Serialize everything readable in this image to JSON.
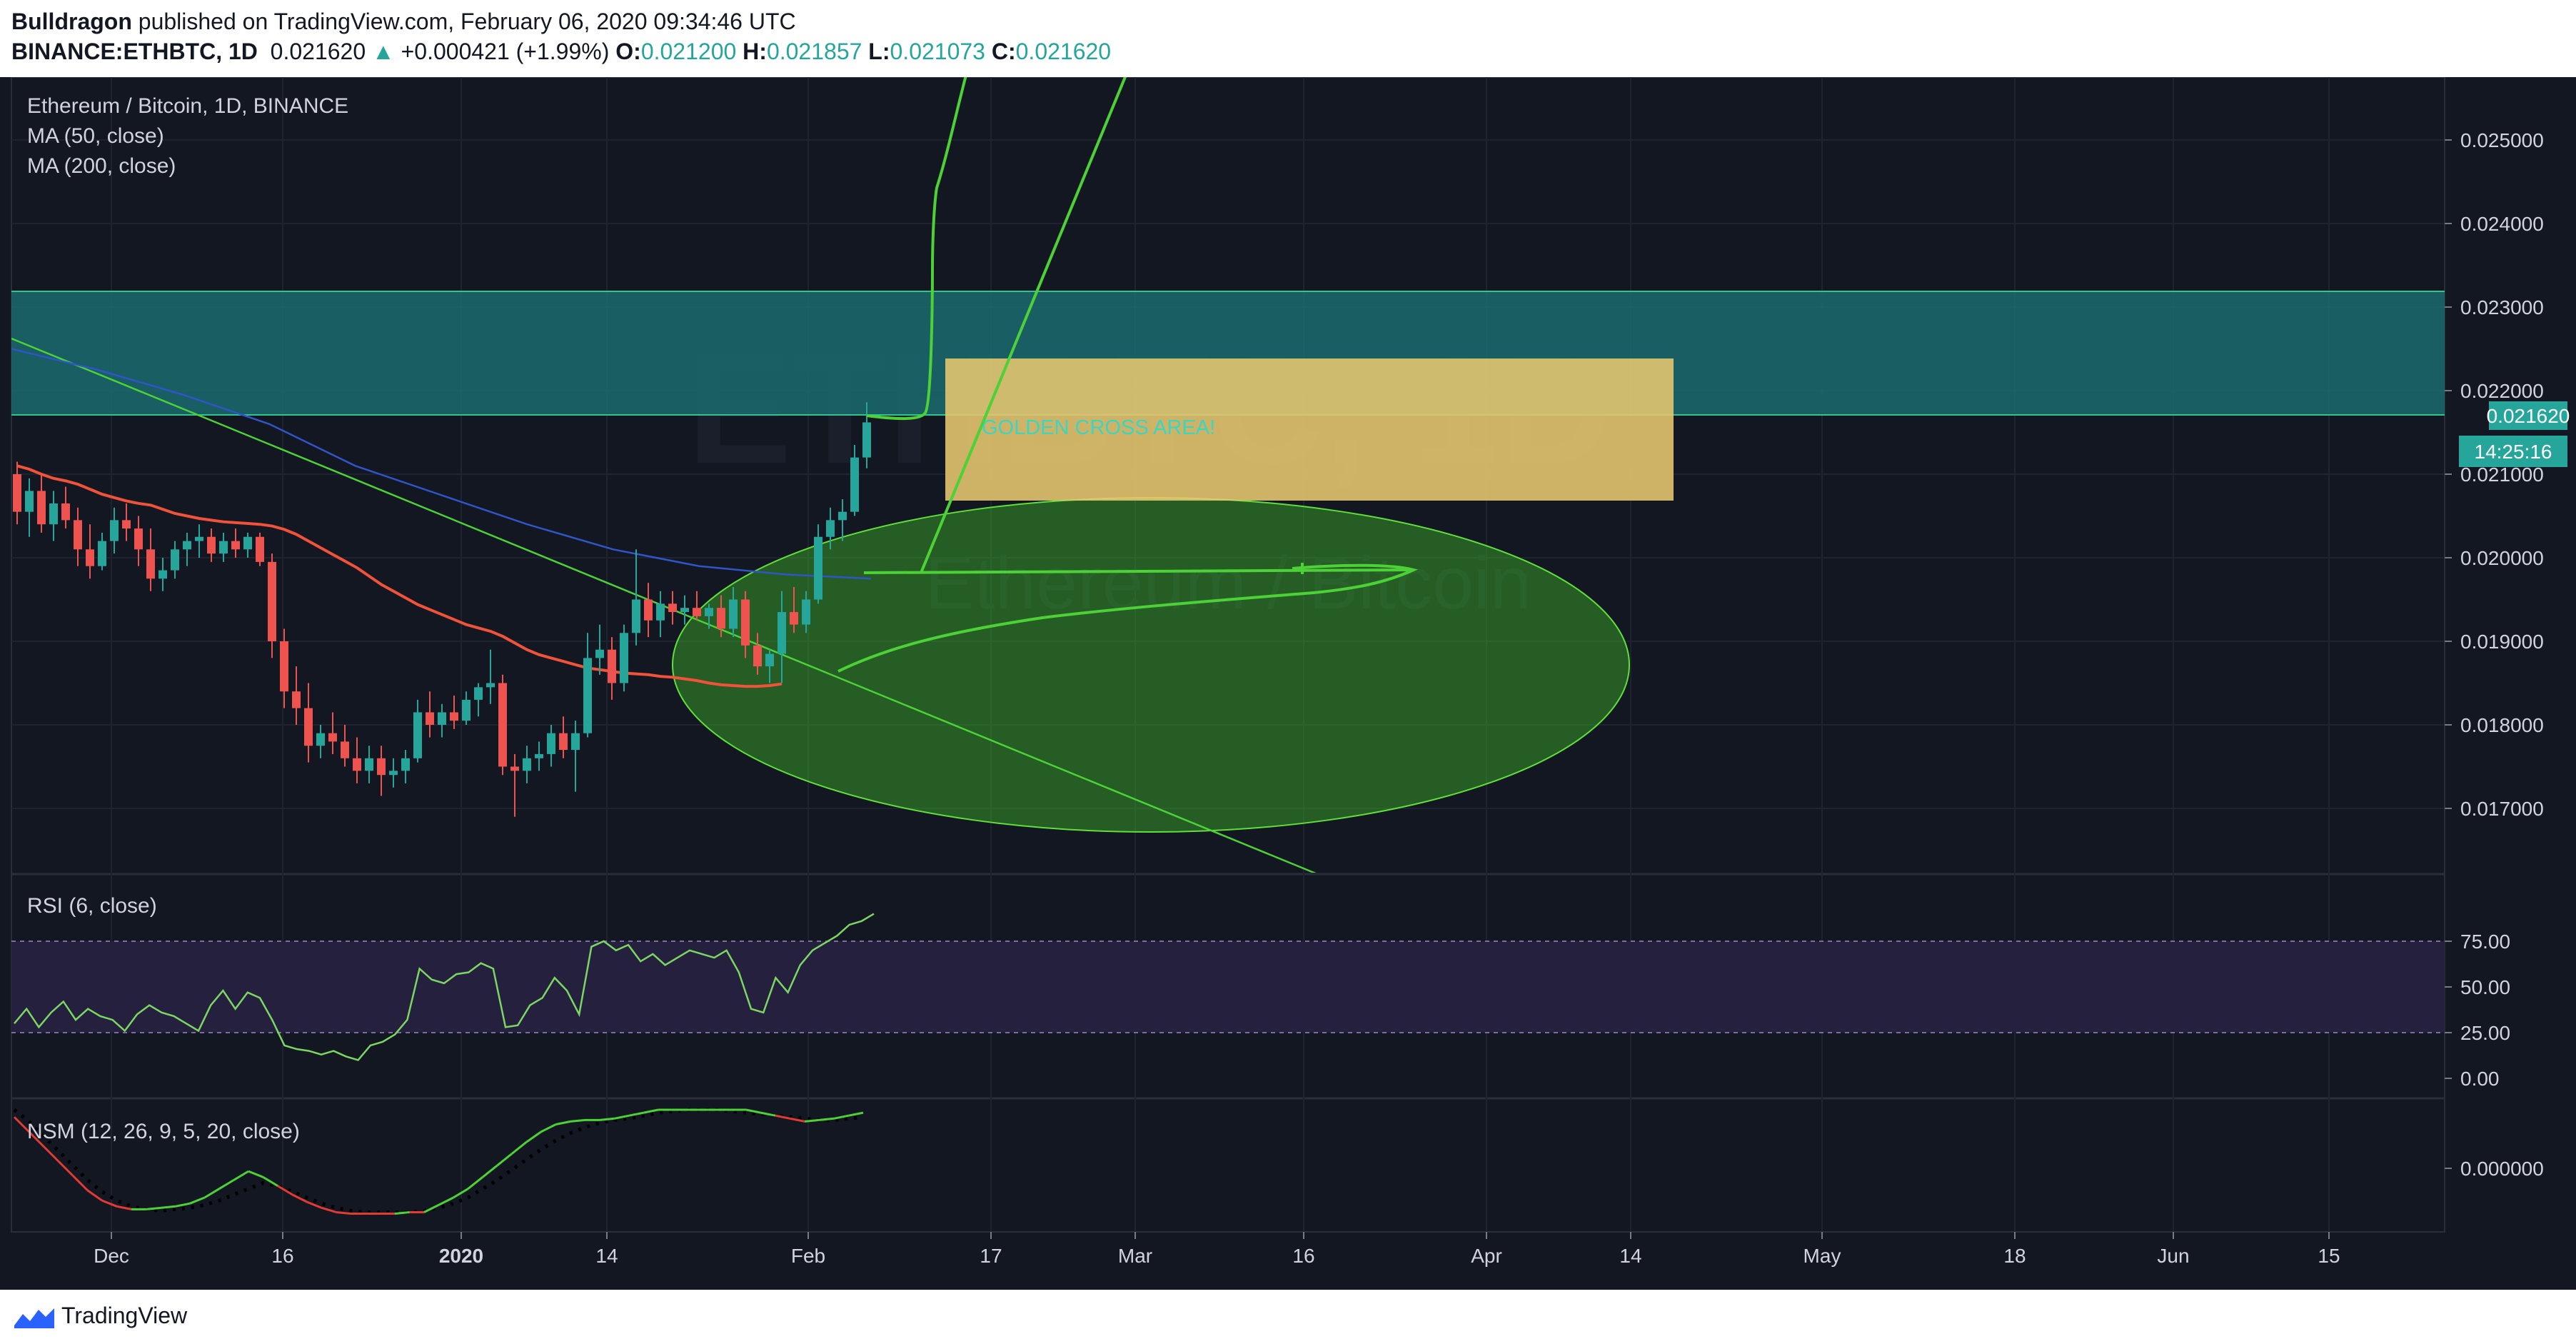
{
  "header": {
    "author": "Bulldragon",
    "published": "published on TradingView.com, February 06, 2020 09:34:46 UTC",
    "symbol": "BINANCE:ETHBTC, 1D",
    "price": "0.021620",
    "change_arrow": "▲",
    "change": "+0.000421 (+1.99%)",
    "o_label": "O:",
    "o": "0.021200",
    "h_label": "H:",
    "h": "0.021857",
    "l_label": "L:",
    "l": "0.021073",
    "c_label": "C:",
    "c": "0.021620"
  },
  "legend": {
    "title": "Ethereum / Bitcoin, 1D, BINANCE",
    "ma50": "MA (50, close)",
    "ma200": "MA (200, close)",
    "rsi": "RSI (6, close)",
    "nsm": "NSM (12, 26, 9, 5, 20, close)"
  },
  "watermark": {
    "big": "ETHBTC, 1D",
    "small": "Ethereum / Bitcoin"
  },
  "annotation": {
    "golden_cross": "GOLDEN CROSS AREA!"
  },
  "price_axis": {
    "ticks": [
      "0.025000",
      "0.024000",
      "0.023000",
      "0.022000",
      "0.021000",
      "0.020000",
      "0.019000",
      "0.018000",
      "0.017000"
    ],
    "current_price": "0.021620",
    "countdown": "14:25:16"
  },
  "rsi_axis": {
    "ticks": [
      "75.00",
      "50.00",
      "25.00",
      "0.00"
    ]
  },
  "nsm_axis": {
    "ticks": [
      "0.000000"
    ]
  },
  "time_axis": {
    "ticks": [
      "Dec",
      "16",
      "2020",
      "14",
      "Feb",
      "17",
      "Mar",
      "16",
      "Apr",
      "14",
      "May",
      "18",
      "Jun",
      "15"
    ]
  },
  "footer": {
    "brand": "TradingView"
  },
  "colors": {
    "background": "#131722",
    "up": "#26a69a",
    "down": "#ef5350",
    "ma50": "#f0523a",
    "ma200": "#2962ff",
    "teal_zone": "#1a6e72",
    "golden_box": "#e8c870",
    "green_drawing": "#4cd137",
    "rsi_line": "#7cd662",
    "rsi_band": "#26203f"
  },
  "chart_data": {
    "type": "candlestick",
    "symbol": "BINANCE:ETHBTC",
    "interval": "1D",
    "ylim": [
      0.0162,
      0.0263
    ],
    "candles": [
      {
        "o": 0.021,
        "h": 0.02115,
        "l": 0.0204,
        "c": 0.02055
      },
      {
        "o": 0.02055,
        "h": 0.02095,
        "l": 0.02025,
        "c": 0.0208
      },
      {
        "o": 0.0208,
        "h": 0.021,
        "l": 0.0203,
        "c": 0.0204
      },
      {
        "o": 0.0204,
        "h": 0.0208,
        "l": 0.0202,
        "c": 0.02065
      },
      {
        "o": 0.02065,
        "h": 0.02085,
        "l": 0.02035,
        "c": 0.02045
      },
      {
        "o": 0.02045,
        "h": 0.0206,
        "l": 0.0199,
        "c": 0.0201
      },
      {
        "o": 0.0201,
        "h": 0.0204,
        "l": 0.01975,
        "c": 0.0199
      },
      {
        "o": 0.0199,
        "h": 0.0203,
        "l": 0.01985,
        "c": 0.0202
      },
      {
        "o": 0.0202,
        "h": 0.0206,
        "l": 0.02005,
        "c": 0.02045
      },
      {
        "o": 0.02045,
        "h": 0.02065,
        "l": 0.0202,
        "c": 0.02035
      },
      {
        "o": 0.02035,
        "h": 0.0205,
        "l": 0.0199,
        "c": 0.0201
      },
      {
        "o": 0.0201,
        "h": 0.02035,
        "l": 0.0196,
        "c": 0.01975
      },
      {
        "o": 0.01975,
        "h": 0.02,
        "l": 0.0196,
        "c": 0.01985
      },
      {
        "o": 0.01985,
        "h": 0.0202,
        "l": 0.01975,
        "c": 0.0201
      },
      {
        "o": 0.0201,
        "h": 0.0203,
        "l": 0.0199,
        "c": 0.0202
      },
      {
        "o": 0.0202,
        "h": 0.0204,
        "l": 0.02,
        "c": 0.02025
      },
      {
        "o": 0.02025,
        "h": 0.02035,
        "l": 0.01995,
        "c": 0.02005
      },
      {
        "o": 0.02005,
        "h": 0.0203,
        "l": 0.01995,
        "c": 0.0202
      },
      {
        "o": 0.0202,
        "h": 0.02035,
        "l": 0.02,
        "c": 0.0201
      },
      {
        "o": 0.0201,
        "h": 0.0203,
        "l": 0.02,
        "c": 0.02025
      },
      {
        "o": 0.02025,
        "h": 0.0203,
        "l": 0.0199,
        "c": 0.01995
      },
      {
        "o": 0.01995,
        "h": 0.02005,
        "l": 0.0188,
        "c": 0.019
      },
      {
        "o": 0.019,
        "h": 0.01915,
        "l": 0.0182,
        "c": 0.0184
      },
      {
        "o": 0.0184,
        "h": 0.0187,
        "l": 0.018,
        "c": 0.0182
      },
      {
        "o": 0.0182,
        "h": 0.0185,
        "l": 0.01755,
        "c": 0.01775
      },
      {
        "o": 0.01775,
        "h": 0.018,
        "l": 0.0176,
        "c": 0.0179
      },
      {
        "o": 0.0179,
        "h": 0.01815,
        "l": 0.01765,
        "c": 0.0178
      },
      {
        "o": 0.0178,
        "h": 0.018,
        "l": 0.0175,
        "c": 0.0176
      },
      {
        "o": 0.0176,
        "h": 0.01785,
        "l": 0.0173,
        "c": 0.01745
      },
      {
        "o": 0.01745,
        "h": 0.01775,
        "l": 0.0173,
        "c": 0.0176
      },
      {
        "o": 0.0176,
        "h": 0.01775,
        "l": 0.01715,
        "c": 0.0174
      },
      {
        "o": 0.0174,
        "h": 0.0176,
        "l": 0.01725,
        "c": 0.01745
      },
      {
        "o": 0.01745,
        "h": 0.0177,
        "l": 0.0173,
        "c": 0.0176
      },
      {
        "o": 0.0176,
        "h": 0.0183,
        "l": 0.01755,
        "c": 0.01815
      },
      {
        "o": 0.01815,
        "h": 0.0184,
        "l": 0.01785,
        "c": 0.018
      },
      {
        "o": 0.018,
        "h": 0.01825,
        "l": 0.01785,
        "c": 0.01815
      },
      {
        "o": 0.01815,
        "h": 0.01835,
        "l": 0.01795,
        "c": 0.01805
      },
      {
        "o": 0.01805,
        "h": 0.0184,
        "l": 0.018,
        "c": 0.0183
      },
      {
        "o": 0.0183,
        "h": 0.0185,
        "l": 0.0181,
        "c": 0.01845
      },
      {
        "o": 0.01845,
        "h": 0.0189,
        "l": 0.01825,
        "c": 0.0185
      },
      {
        "o": 0.0185,
        "h": 0.0186,
        "l": 0.0174,
        "c": 0.0175
      },
      {
        "o": 0.0175,
        "h": 0.01765,
        "l": 0.0169,
        "c": 0.01745
      },
      {
        "o": 0.01745,
        "h": 0.01775,
        "l": 0.0173,
        "c": 0.0176
      },
      {
        "o": 0.0176,
        "h": 0.0178,
        "l": 0.01745,
        "c": 0.01765
      },
      {
        "o": 0.01765,
        "h": 0.018,
        "l": 0.0175,
        "c": 0.0179
      },
      {
        "o": 0.0179,
        "h": 0.0181,
        "l": 0.0176,
        "c": 0.0177
      },
      {
        "o": 0.0177,
        "h": 0.01805,
        "l": 0.0172,
        "c": 0.0179
      },
      {
        "o": 0.0179,
        "h": 0.0191,
        "l": 0.01785,
        "c": 0.0188
      },
      {
        "o": 0.0188,
        "h": 0.0192,
        "l": 0.0186,
        "c": 0.0189
      },
      {
        "o": 0.0189,
        "h": 0.01905,
        "l": 0.0183,
        "c": 0.0185
      },
      {
        "o": 0.0185,
        "h": 0.0192,
        "l": 0.0184,
        "c": 0.0191
      },
      {
        "o": 0.0191,
        "h": 0.0201,
        "l": 0.01895,
        "c": 0.0195
      },
      {
        "o": 0.0195,
        "h": 0.0197,
        "l": 0.01905,
        "c": 0.01925
      },
      {
        "o": 0.01925,
        "h": 0.0196,
        "l": 0.01905,
        "c": 0.01945
      },
      {
        "o": 0.01945,
        "h": 0.0196,
        "l": 0.0192,
        "c": 0.01935
      },
      {
        "o": 0.01935,
        "h": 0.01955,
        "l": 0.0192,
        "c": 0.0194
      },
      {
        "o": 0.0194,
        "h": 0.0196,
        "l": 0.01925,
        "c": 0.0193
      },
      {
        "o": 0.0193,
        "h": 0.01945,
        "l": 0.01915,
        "c": 0.0194
      },
      {
        "o": 0.0194,
        "h": 0.01955,
        "l": 0.01905,
        "c": 0.01915
      },
      {
        "o": 0.01915,
        "h": 0.01965,
        "l": 0.01905,
        "c": 0.0195
      },
      {
        "o": 0.0195,
        "h": 0.0196,
        "l": 0.0188,
        "c": 0.01895
      },
      {
        "o": 0.01895,
        "h": 0.0191,
        "l": 0.0186,
        "c": 0.0187
      },
      {
        "o": 0.0187,
        "h": 0.0189,
        "l": 0.0185,
        "c": 0.01885
      },
      {
        "o": 0.01885,
        "h": 0.0196,
        "l": 0.0185,
        "c": 0.01935
      },
      {
        "o": 0.01935,
        "h": 0.01965,
        "l": 0.0191,
        "c": 0.0192
      },
      {
        "o": 0.0192,
        "h": 0.0196,
        "l": 0.0191,
        "c": 0.0195
      },
      {
        "o": 0.0195,
        "h": 0.0204,
        "l": 0.01945,
        "c": 0.02025
      },
      {
        "o": 0.02025,
        "h": 0.0206,
        "l": 0.0201,
        "c": 0.02045
      },
      {
        "o": 0.02045,
        "h": 0.0207,
        "l": 0.0202,
        "c": 0.02055
      },
      {
        "o": 0.02055,
        "h": 0.02135,
        "l": 0.0205,
        "c": 0.0212
      },
      {
        "o": 0.0212,
        "h": 0.02186,
        "l": 0.02107,
        "c": 0.02162
      }
    ],
    "ma50": [
      0.0211,
      0.02106,
      0.021,
      0.02095,
      0.02092,
      0.02088,
      0.02082,
      0.02076,
      0.02072,
      0.02068,
      0.02065,
      0.02063,
      0.02058,
      0.02053,
      0.0205,
      0.02047,
      0.02045,
      0.02043,
      0.02042,
      0.02041,
      0.0204,
      0.02038,
      0.02034,
      0.02028,
      0.0202,
      0.02012,
      0.02004,
      0.01996,
      0.01988,
      0.01978,
      0.01968,
      0.0196,
      0.01952,
      0.01944,
      0.01938,
      0.01932,
      0.01926,
      0.0192,
      0.01916,
      0.01912,
      0.01906,
      0.01898,
      0.0189,
      0.01884,
      0.0188,
      0.01876,
      0.01872,
      0.01868,
      0.01866,
      0.01864,
      0.01862,
      0.01861,
      0.0186,
      0.01858,
      0.01857,
      0.01855,
      0.01853,
      0.0185,
      0.01848,
      0.01847,
      0.01846,
      0.01846,
      0.01847,
      0.01849
    ],
    "ma200_points": [
      [
        0,
        0.0225
      ],
      [
        10,
        0.02225
      ],
      [
        20,
        0.02195
      ],
      [
        30,
        0.0216
      ],
      [
        40,
        0.0211
      ],
      [
        50,
        0.02075
      ],
      [
        60,
        0.0204
      ],
      [
        70,
        0.0201
      ],
      [
        80,
        0.0199
      ],
      [
        90,
        0.0198
      ],
      [
        100,
        0.01975
      ]
    ],
    "rsi": [
      30,
      38,
      28,
      36,
      42,
      32,
      38,
      34,
      32,
      26,
      35,
      40,
      36,
      34,
      30,
      26,
      40,
      48,
      38,
      47,
      44,
      32,
      18,
      16,
      15,
      13,
      15,
      12,
      10,
      18,
      20,
      24,
      32,
      60,
      54,
      52,
      57,
      58,
      63,
      60,
      28,
      29,
      40,
      44,
      55,
      48,
      35,
      72,
      75,
      70,
      73,
      64,
      68,
      62,
      66,
      70,
      68,
      66,
      70,
      58,
      38,
      36,
      55,
      47,
      62,
      70,
      74,
      78,
      84,
      86,
      90
    ],
    "nsm": [
      35,
      25,
      15,
      5,
      -5,
      -15,
      -22,
      -26,
      -28,
      -28,
      -27,
      -26,
      -24,
      -20,
      -14,
      -8,
      -2,
      -6,
      -12,
      -18,
      -23,
      -27,
      -30,
      -31,
      -31,
      -31,
      -31,
      -30,
      -30,
      -25,
      -20,
      -14,
      -6,
      2,
      10,
      18,
      25,
      30,
      32,
      33,
      33,
      34,
      36,
      38,
      40,
      40,
      40,
      40,
      40,
      40,
      40,
      38,
      36,
      34,
      32,
      33,
      34,
      36,
      38
    ],
    "nsm_signal": [
      40,
      32,
      22,
      12,
      2,
      -8,
      -16,
      -22,
      -26,
      -28,
      -29,
      -28,
      -27,
      -25,
      -22,
      -18,
      -14,
      -10,
      -12,
      -16,
      -20,
      -24,
      -27,
      -29,
      -30,
      -30,
      -30,
      -30,
      -29,
      -27,
      -24,
      -20,
      -14,
      -8,
      -1,
      6,
      13,
      19,
      24,
      28,
      31,
      33,
      34,
      36,
      38,
      39,
      40,
      40,
      40,
      39,
      38,
      37,
      36,
      35,
      34,
      33,
      33,
      34,
      35
    ]
  }
}
